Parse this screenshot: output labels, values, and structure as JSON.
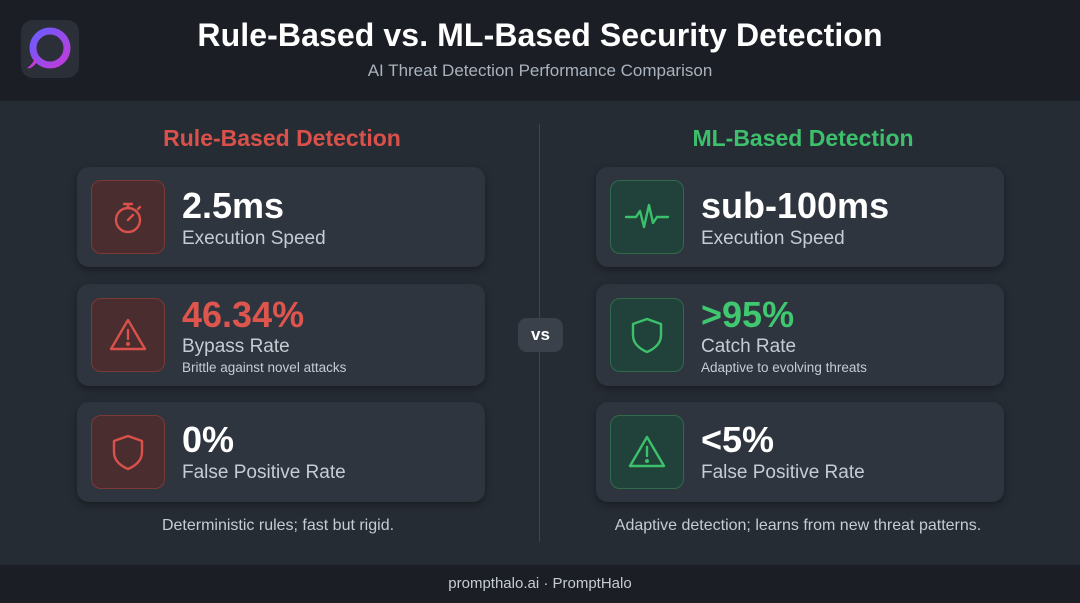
{
  "header": {
    "title": "Rule-Based vs. ML-Based Security Detection",
    "subtitle": "AI Threat Detection Performance Comparison",
    "logo_icon": "ring-logo-icon"
  },
  "columns": {
    "left": {
      "heading": "Rule-Based Detection",
      "accent": "#d9514a",
      "cards": [
        {
          "icon": "stopwatch-icon",
          "value": "2.5ms",
          "label": "Execution Speed",
          "note": ""
        },
        {
          "icon": "warning-triangle-icon",
          "value": "46.34%",
          "label": "Bypass Rate",
          "note": "Brittle against novel attacks"
        },
        {
          "icon": "shield-icon",
          "value": "0%",
          "label": "False Positive Rate",
          "note": ""
        }
      ],
      "caption": "Deterministic rules; fast but rigid."
    },
    "right": {
      "heading": "ML-Based Detection",
      "accent": "#3cc06c",
      "cards": [
        {
          "icon": "heartbeat-pulse-icon",
          "value": "sub-100ms",
          "label": "Execution Speed",
          "note": ""
        },
        {
          "icon": "shield-icon",
          "value": ">95%",
          "label": "Catch Rate",
          "note": "Adaptive to evolving threats"
        },
        {
          "icon": "warning-triangle-icon",
          "value": "<5%",
          "label": "False Positive Rate",
          "note": ""
        }
      ],
      "caption": "Adaptive detection; learns from new threat patterns."
    }
  },
  "vs_label": "vs",
  "footer": {
    "text": "prompthalo.ai · PromptHalo"
  }
}
